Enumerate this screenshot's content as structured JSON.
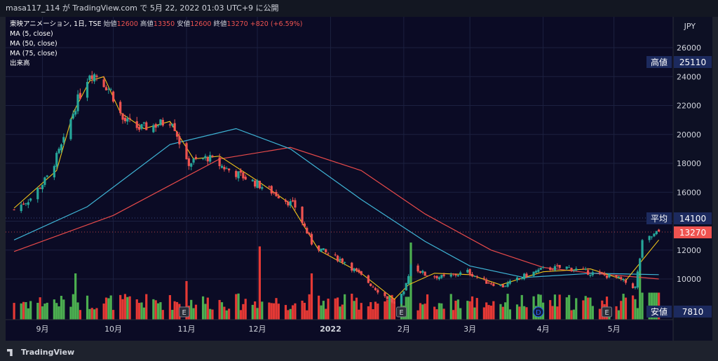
{
  "header": {
    "publish_line": "masa117_114 が TradingView.com で 5月 22, 2022 01:03 UTC+9 に公開"
  },
  "legend": {
    "symbol": "東映アニメーション, 1日, TSE",
    "ohlc": [
      {
        "label": "始値",
        "value": "12600"
      },
      {
        "label": "高値",
        "value": "13350"
      },
      {
        "label": "安値",
        "value": "12600"
      },
      {
        "label": "終値",
        "value": "13270"
      }
    ],
    "change": "+820 (+6.59%)",
    "indicators": [
      "MA (5, close)",
      "MA (50, close)",
      "MA (75, close)",
      "出来高"
    ]
  },
  "axis": {
    "currency": "JPY",
    "y_ticks": [
      "26000",
      "24000",
      "22000",
      "20000",
      "18000",
      "16000",
      "14000",
      "12000",
      "10000"
    ],
    "x_ticks": [
      "9月",
      "10月",
      "11月",
      "12月",
      "2022",
      "2月",
      "3月",
      "4月",
      "5月"
    ]
  },
  "price_tags": [
    {
      "label": "高値",
      "value": "25110",
      "color": "#1c2a5e"
    },
    {
      "label": "平均",
      "value": "14100",
      "color": "#1c2a5e"
    },
    {
      "label": "",
      "value": "13270",
      "color": "#ef5350"
    },
    {
      "label": "安値",
      "value": "7810",
      "color": "#1c2a5e"
    }
  ],
  "footer": {
    "brand": "TradingView"
  },
  "colors": {
    "up": "#26a69a",
    "down": "#ef5350",
    "vol_up": "#4caf50",
    "vol_down": "#e53935",
    "ma5": "#f0c419",
    "ma50": "#3fb5d6",
    "ma75": "#e84a4a",
    "background": "#0b0b25"
  },
  "chart_data": {
    "type": "candlestick",
    "ylim": [
      7810,
      26500
    ],
    "price_levels": {
      "high": 25110,
      "average": 14100,
      "last": 13270,
      "low": 7810
    },
    "close_path": [
      {
        "date": "2021-08-20",
        "close": 14800
      },
      {
        "date": "2021-08-27",
        "close": 15600
      },
      {
        "date": "2021-09-03",
        "close": 17000
      },
      {
        "date": "2021-09-10",
        "close": 19500
      },
      {
        "date": "2021-09-15",
        "close": 22000
      },
      {
        "date": "2021-09-21",
        "close": 24300
      },
      {
        "date": "2021-09-24",
        "close": 24100
      },
      {
        "date": "2021-09-30",
        "close": 23000
      },
      {
        "date": "2021-10-05",
        "close": 21000
      },
      {
        "date": "2021-10-12",
        "close": 20400
      },
      {
        "date": "2021-10-20",
        "close": 20700
      },
      {
        "date": "2021-10-26",
        "close": 21000
      },
      {
        "date": "2021-11-01",
        "close": 18000
      },
      {
        "date": "2021-11-10",
        "close": 18400
      },
      {
        "date": "2021-11-18",
        "close": 17600
      },
      {
        "date": "2021-11-26",
        "close": 17000
      },
      {
        "date": "2021-12-03",
        "close": 16400
      },
      {
        "date": "2021-12-10",
        "close": 15800
      },
      {
        "date": "2021-12-17",
        "close": 15000
      },
      {
        "date": "2021-12-24",
        "close": 12500
      },
      {
        "date": "2021-12-30",
        "close": 11800
      },
      {
        "date": "2022-01-07",
        "close": 11200
      },
      {
        "date": "2022-01-14",
        "close": 10200
      },
      {
        "date": "2022-01-21",
        "close": 9200
      },
      {
        "date": "2022-01-28",
        "close": 8300
      },
      {
        "date": "2022-02-01",
        "close": 9000
      },
      {
        "date": "2022-02-04",
        "close": 11000
      },
      {
        "date": "2022-02-10",
        "close": 10300
      },
      {
        "date": "2022-02-18",
        "close": 10100
      },
      {
        "date": "2022-02-28",
        "close": 10500
      },
      {
        "date": "2022-03-08",
        "close": 9800
      },
      {
        "date": "2022-03-15",
        "close": 9500
      },
      {
        "date": "2022-03-24",
        "close": 10200
      },
      {
        "date": "2022-04-01",
        "close": 10700
      },
      {
        "date": "2022-04-11",
        "close": 10800
      },
      {
        "date": "2022-04-22",
        "close": 10400
      },
      {
        "date": "2022-05-02",
        "close": 10100
      },
      {
        "date": "2022-05-10",
        "close": 9400
      },
      {
        "date": "2022-05-13",
        "close": 12500
      },
      {
        "date": "2022-05-20",
        "close": 13270
      }
    ],
    "ma_5": [
      {
        "date": "2021-08-20",
        "value": 14900
      },
      {
        "date": "2021-09-07",
        "value": 17500
      },
      {
        "date": "2021-09-14",
        "value": 21500
      },
      {
        "date": "2021-09-21",
        "value": 23700
      },
      {
        "date": "2021-09-27",
        "value": 24000
      },
      {
        "date": "2021-10-04",
        "value": 21500
      },
      {
        "date": "2021-10-14",
        "value": 20400
      },
      {
        "date": "2021-10-25",
        "value": 20900
      },
      {
        "date": "2021-11-04",
        "value": 18300
      },
      {
        "date": "2021-11-15",
        "value": 18500
      },
      {
        "date": "2021-12-01",
        "value": 16800
      },
      {
        "date": "2021-12-15",
        "value": 15200
      },
      {
        "date": "2021-12-27",
        "value": 12000
      },
      {
        "date": "2022-01-14",
        "value": 10400
      },
      {
        "date": "2022-01-28",
        "value": 8600
      },
      {
        "date": "2022-02-03",
        "value": 9600
      },
      {
        "date": "2022-02-14",
        "value": 10400
      },
      {
        "date": "2022-03-01",
        "value": 10300
      },
      {
        "date": "2022-03-14",
        "value": 9600
      },
      {
        "date": "2022-04-01",
        "value": 10500
      },
      {
        "date": "2022-04-21",
        "value": 10700
      },
      {
        "date": "2022-05-06",
        "value": 9900
      },
      {
        "date": "2022-05-20",
        "value": 12700
      }
    ],
    "ma_50": [
      {
        "date": "2021-08-20",
        "value": 12700
      },
      {
        "date": "2021-09-20",
        "value": 15000
      },
      {
        "date": "2021-10-25",
        "value": 19300
      },
      {
        "date": "2021-11-22",
        "value": 20400
      },
      {
        "date": "2021-12-15",
        "value": 19000
      },
      {
        "date": "2022-01-14",
        "value": 15500
      },
      {
        "date": "2022-02-10",
        "value": 12600
      },
      {
        "date": "2022-03-01",
        "value": 10900
      },
      {
        "date": "2022-03-24",
        "value": 10100
      },
      {
        "date": "2022-04-22",
        "value": 10400
      },
      {
        "date": "2022-05-20",
        "value": 10300
      }
    ],
    "ma_75": [
      {
        "date": "2021-08-20",
        "value": 11900
      },
      {
        "date": "2021-10-01",
        "value": 14400
      },
      {
        "date": "2021-11-15",
        "value": 18300
      },
      {
        "date": "2021-12-15",
        "value": 19100
      },
      {
        "date": "2022-01-14",
        "value": 17500
      },
      {
        "date": "2022-02-10",
        "value": 14500
      },
      {
        "date": "2022-03-10",
        "value": 12000
      },
      {
        "date": "2022-04-01",
        "value": 10800
      },
      {
        "date": "2022-04-22",
        "value": 10400
      },
      {
        "date": "2022-05-20",
        "value": 10000
      }
    ],
    "volume_events": [
      {
        "date": "2021-09-15",
        "relative_volume": 0.6
      },
      {
        "date": "2021-11-01",
        "relative_volume": 0.5
      },
      {
        "date": "2021-12-02",
        "relative_volume": 0.95
      },
      {
        "date": "2021-12-24",
        "relative_volume": 0.6
      },
      {
        "date": "2022-02-04",
        "relative_volume": 1.0
      },
      {
        "date": "2022-05-12",
        "relative_volume": 0.75
      }
    ],
    "event_markers": [
      {
        "date": "2021-10-31",
        "symbol": "E"
      },
      {
        "date": "2022-01-31",
        "symbol": "E"
      },
      {
        "date": "2022-03-30",
        "symbol": "D"
      },
      {
        "date": "2022-04-28",
        "symbol": "E"
      }
    ]
  }
}
